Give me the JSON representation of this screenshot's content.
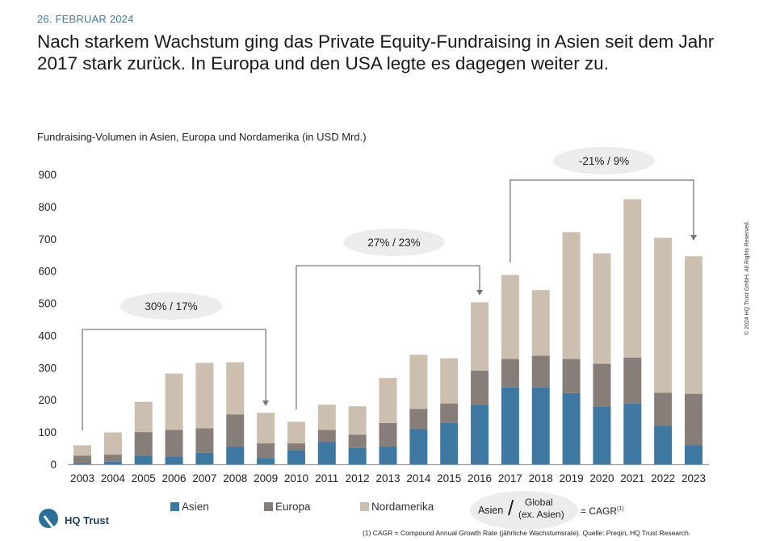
{
  "header": {
    "date": "26. FEBRUAR 2024",
    "headline": "Nach starkem Wachstum ging das Private Equity-Fundraising in Asien seit dem Jahr 2017 stark zurück. In Europa und den USA legte es dagegen weiter zu."
  },
  "copyright": "© 2024 HQ Trust GmbH. All Rights Reserved.",
  "logo": {
    "text": "HQ Trust"
  },
  "legend_key": {
    "left": "Asien",
    "slash": "/",
    "right_line1": "Global",
    "right_line2": "(ex. Asien)",
    "equals": "= CAGR",
    "sup": "(1)"
  },
  "footnote": "(1) CAGR = Compound Annual Growth Rate (jährliche Wachstumsrate). Quelle: Preqin, HQ Trust Research.",
  "chart_data": {
    "type": "bar",
    "stacked": true,
    "title": "Fundraising-Volumen in Asien, Europa und Nordamerika (in USD Mrd.)",
    "categories": [
      "2003",
      "2004",
      "2005",
      "2006",
      "2007",
      "2008",
      "2009",
      "2010",
      "2011",
      "2012",
      "2013",
      "2014",
      "2015",
      "2016",
      "2017",
      "2018",
      "2019",
      "2020",
      "2021",
      "2022",
      "2023"
    ],
    "series": [
      {
        "name": "Asien",
        "color": "#3e77a0",
        "values": [
          4,
          8,
          27,
          24,
          36,
          55,
          19,
          44,
          70,
          51,
          55,
          109,
          128,
          185,
          239,
          239,
          221,
          180,
          189,
          119,
          59
        ]
      },
      {
        "name": "Europa",
        "color": "#877d79",
        "values": [
          23,
          22,
          73,
          83,
          76,
          100,
          46,
          21,
          37,
          41,
          73,
          63,
          61,
          106,
          88,
          98,
          106,
          132,
          142,
          103,
          160
        ]
      },
      {
        "name": "Nordamerika",
        "color": "#cdbfaf",
        "values": [
          32,
          69,
          94,
          175,
          203,
          162,
          95,
          67,
          78,
          88,
          140,
          168,
          140,
          212,
          261,
          204,
          394,
          343,
          492,
          481,
          427
        ]
      }
    ],
    "ylim": [
      0,
      900
    ],
    "yticks": [
      0,
      100,
      200,
      300,
      400,
      500,
      600,
      700,
      800,
      900
    ],
    "grid": false,
    "legend": "bottom",
    "annotations": [
      {
        "from": "2003",
        "to": "2009",
        "label": "30% / 17%"
      },
      {
        "from": "2010",
        "to": "2016",
        "label": "27% / 23%"
      },
      {
        "from": "2017",
        "to": "2023",
        "label": "-21% / 9%"
      }
    ]
  }
}
